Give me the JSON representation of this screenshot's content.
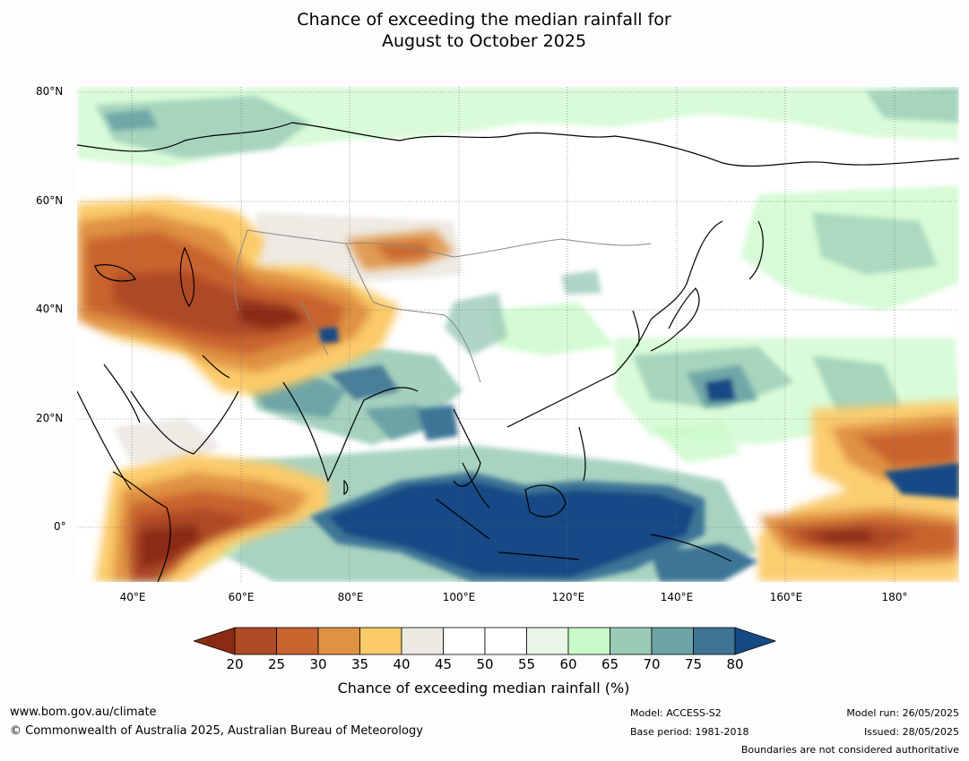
{
  "title_line1": "Chance of exceeding the median rainfall for",
  "title_line2": "August to October 2025",
  "map": {
    "lat_labels": [
      "80°N",
      "60°N",
      "40°N",
      "20°N",
      "0°"
    ],
    "lon_labels": [
      "40°E",
      "60°E",
      "80°E",
      "100°E",
      "120°E",
      "140°E",
      "160°E",
      "180°"
    ],
    "lon_range": [
      30,
      192
    ],
    "lat_range": [
      -10,
      80
    ]
  },
  "legend": {
    "ticks": [
      "20",
      "25",
      "30",
      "35",
      "40",
      "45",
      "50",
      "55",
      "60",
      "65",
      "70",
      "75",
      "80"
    ],
    "colors": [
      "#8b2a13",
      "#ae4a25",
      "#c9642f",
      "#e09243",
      "#fbca69",
      "#ece9e2",
      "#ffffff",
      "#ffffff",
      "#e8f6e8",
      "#c9fac9",
      "#9acbb6",
      "#6ca3a6",
      "#3e7596",
      "#154a85"
    ],
    "label": "Chance of exceeding median rainfall (%)"
  },
  "footer": {
    "website": "www.bom.gov.au/climate",
    "copyright": "© Commonwealth of Australia 2025, Australian Bureau of Meteorology",
    "model": "Model: ACCESS-S2",
    "base_period": "Base period: 1981-2018",
    "model_run": "Model run: 26/05/2025",
    "issued": "Issued: 28/05/2025",
    "disclaimer": "Boundaries are not considered authoritative"
  }
}
